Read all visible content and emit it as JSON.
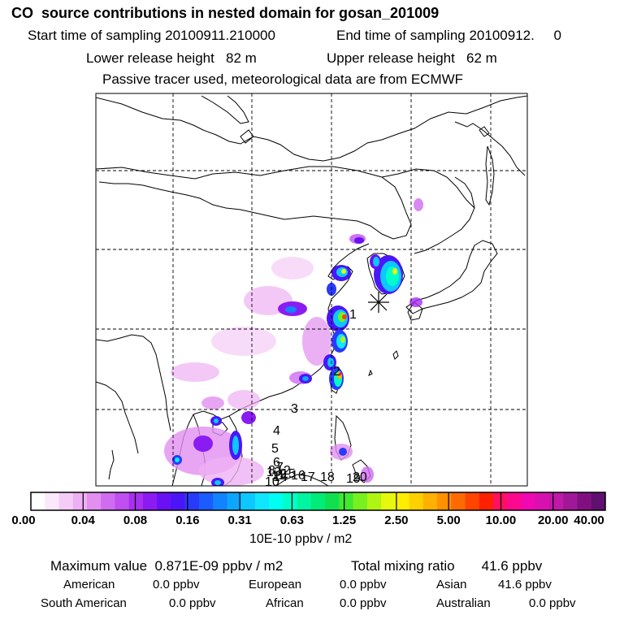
{
  "header": {
    "title": "CO  source contributions in nested domain for gosan_201009",
    "start_label": "Start time of sampling 20100911.210000",
    "end_label": "End time of sampling 20100912.     0",
    "lower_release": "Lower release height   82 m",
    "upper_release": "Upper release height   62 m",
    "tracer_note": "Passive tracer used, meteorological data are from ECMWF"
  },
  "map": {
    "station_marker": "*",
    "trajectory_labels": [
      "1",
      "2",
      "3",
      "4",
      "5",
      "6",
      "7",
      "8",
      "9",
      "10",
      "11",
      "12",
      "13",
      "14",
      "15",
      "16",
      "17",
      "18",
      "19",
      "20"
    ]
  },
  "colorbar": {
    "tick_labels": [
      "0.00",
      "0.04",
      "0.08",
      "0.16",
      "0.31",
      "0.63",
      "1.25",
      "2.50",
      "5.00",
      "10.00",
      "20.00",
      "40.00"
    ],
    "unit_label": "10E-10 ppbv / m2",
    "colors": [
      "#ffffff",
      "#fbe8fb",
      "#f5ccf7",
      "#eeb0f4",
      "#e28ff0",
      "#d06cf0",
      "#c04ef0",
      "#a82ef2",
      "#8a1cf2",
      "#6a10f4",
      "#4a16f8",
      "#2a3afc",
      "#1a5cff",
      "#1282ff",
      "#0ca6ff",
      "#0cc8ff",
      "#10e6ff",
      "#00fff0",
      "#00ffc8",
      "#00f5a0",
      "#00ec78",
      "#10e050",
      "#40e830",
      "#78f020",
      "#b0f414",
      "#e6f80c",
      "#ffee00",
      "#ffd000",
      "#ffb000",
      "#ff9000",
      "#ff6a00",
      "#ff4400",
      "#ff2000",
      "#ff1060",
      "#ff0890",
      "#f008b0",
      "#d810b0",
      "#c018a8",
      "#a01898",
      "#801080",
      "#601070"
    ]
  },
  "stats": {
    "max_value": "Maximum value  0.871E-09 ppbv / m2",
    "total_mixing": "Total mixing ratio       41.6 ppbv",
    "american_label": "American",
    "american_value": "0.0 ppbv",
    "european_label": "European",
    "european_value": "0.0 ppbv",
    "asian_label": "Asian",
    "asian_value": "41.6 ppbv",
    "south_american_label": "South American",
    "south_american_value": "0.0 ppbv",
    "african_label": "African",
    "african_value": "0.0 ppbv",
    "australian_label": "Australian",
    "australian_value": "0.0 ppbv"
  }
}
